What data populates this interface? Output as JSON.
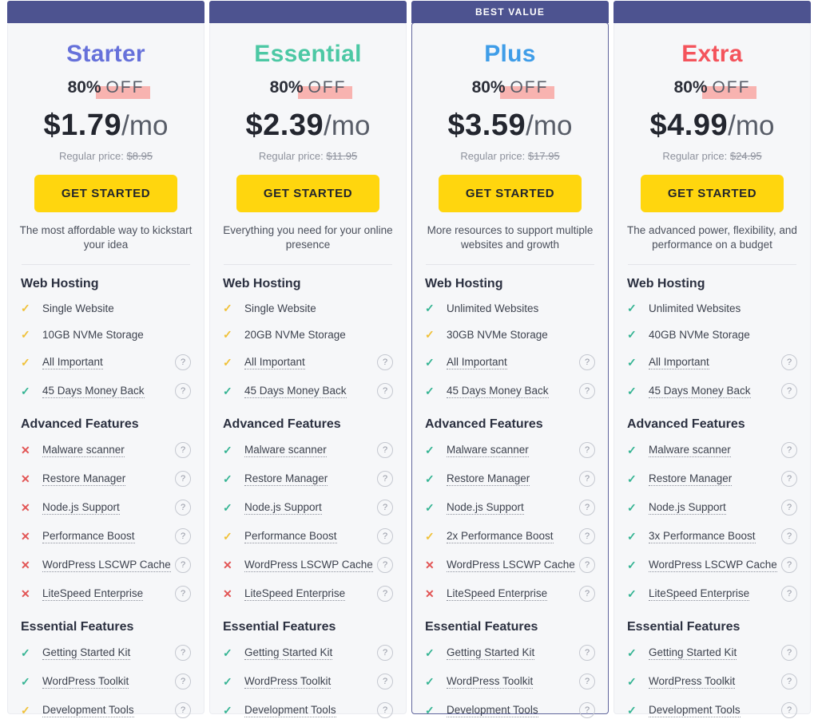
{
  "banner": {
    "label": "BEST VALUE",
    "bg": "#4d5390"
  },
  "icons": {
    "check": "✓",
    "cross": "✕",
    "help": "?"
  },
  "colors": {
    "check_yellow": "#f0c138",
    "check_green": "#35b493",
    "cross_red": "#e25555",
    "cta_yellow": "#ffd60e",
    "discount_highlight": "#f8b3b0"
  },
  "plans": [
    {
      "name": "Starter",
      "color": "#6671da",
      "discount_bold": "80%",
      "discount_rest": "OFF",
      "price": "$1.79",
      "period": "/mo",
      "regular_label": "Regular price:",
      "regular_price": "$8.95",
      "cta": "GET STARTED",
      "description": "The most affordable way to kickstart your idea",
      "best_value": false,
      "sections": [
        {
          "title": "Web Hosting",
          "items": [
            {
              "label": "Single Website",
              "icon": "check-yellow",
              "tooltip": false
            },
            {
              "label": "10GB NVMe Storage",
              "icon": "check-yellow",
              "tooltip": false
            },
            {
              "label": "All Important",
              "icon": "check-yellow",
              "tooltip": true
            },
            {
              "label": "45 Days Money Back",
              "icon": "check-green",
              "tooltip": true
            }
          ]
        },
        {
          "title": "Advanced Features",
          "items": [
            {
              "label": "Malware scanner",
              "icon": "cross",
              "tooltip": true
            },
            {
              "label": "Restore Manager",
              "icon": "cross",
              "tooltip": true
            },
            {
              "label": "Node.js Support",
              "icon": "cross",
              "tooltip": true
            },
            {
              "label": "Performance Boost",
              "icon": "cross",
              "tooltip": true
            },
            {
              "label": "WordPress LSCWP Cache",
              "icon": "cross",
              "tooltip": true
            },
            {
              "label": "LiteSpeed Enterprise",
              "icon": "cross",
              "tooltip": true
            }
          ]
        },
        {
          "title": "Essential Features",
          "items": [
            {
              "label": "Getting Started Kit",
              "icon": "check-green",
              "tooltip": true
            },
            {
              "label": "WordPress Toolkit",
              "icon": "check-green",
              "tooltip": true
            },
            {
              "label": "Development Tools",
              "icon": "check-yellow",
              "tooltip": true
            }
          ]
        }
      ]
    },
    {
      "name": "Essential",
      "color": "#4cc8a4",
      "discount_bold": "80%",
      "discount_rest": "OFF",
      "price": "$2.39",
      "period": "/mo",
      "regular_label": "Regular price:",
      "regular_price": "$11.95",
      "cta": "GET STARTED",
      "description": "Everything you need for your online presence",
      "best_value": false,
      "sections": [
        {
          "title": "Web Hosting",
          "items": [
            {
              "label": "Single Website",
              "icon": "check-yellow",
              "tooltip": false
            },
            {
              "label": "20GB NVMe Storage",
              "icon": "check-yellow",
              "tooltip": false
            },
            {
              "label": "All Important",
              "icon": "check-yellow",
              "tooltip": true
            },
            {
              "label": "45 Days Money Back",
              "icon": "check-green",
              "tooltip": true
            }
          ]
        },
        {
          "title": "Advanced Features",
          "items": [
            {
              "label": "Malware scanner",
              "icon": "check-green",
              "tooltip": true
            },
            {
              "label": "Restore Manager",
              "icon": "check-green",
              "tooltip": true
            },
            {
              "label": "Node.js Support",
              "icon": "check-green",
              "tooltip": true
            },
            {
              "label": "Performance Boost",
              "icon": "check-yellow",
              "tooltip": true
            },
            {
              "label": "WordPress LSCWP Cache",
              "icon": "cross",
              "tooltip": true
            },
            {
              "label": "LiteSpeed Enterprise",
              "icon": "cross",
              "tooltip": true
            }
          ]
        },
        {
          "title": "Essential Features",
          "items": [
            {
              "label": "Getting Started Kit",
              "icon": "check-green",
              "tooltip": true
            },
            {
              "label": "WordPress Toolkit",
              "icon": "check-green",
              "tooltip": true
            },
            {
              "label": "Development Tools",
              "icon": "check-green",
              "tooltip": true
            }
          ]
        }
      ]
    },
    {
      "name": "Plus",
      "color": "#3f9de8",
      "discount_bold": "80%",
      "discount_rest": "OFF",
      "price": "$3.59",
      "period": "/mo",
      "regular_label": "Regular price:",
      "regular_price": "$17.95",
      "cta": "GET STARTED",
      "description": "More resources to support multiple websites and growth",
      "best_value": true,
      "sections": [
        {
          "title": "Web Hosting",
          "items": [
            {
              "label": "Unlimited Websites",
              "icon": "check-green",
              "tooltip": false
            },
            {
              "label": "30GB NVMe Storage",
              "icon": "check-yellow",
              "tooltip": false
            },
            {
              "label": "All Important",
              "icon": "check-green",
              "tooltip": true
            },
            {
              "label": "45 Days Money Back",
              "icon": "check-green",
              "tooltip": true
            }
          ]
        },
        {
          "title": "Advanced Features",
          "items": [
            {
              "label": "Malware scanner",
              "icon": "check-green",
              "tooltip": true
            },
            {
              "label": "Restore Manager",
              "icon": "check-green",
              "tooltip": true
            },
            {
              "label": "Node.js Support",
              "icon": "check-green",
              "tooltip": true
            },
            {
              "label": "2x Performance Boost",
              "icon": "check-yellow",
              "tooltip": true
            },
            {
              "label": "WordPress LSCWP Cache",
              "icon": "cross",
              "tooltip": true
            },
            {
              "label": "LiteSpeed Enterprise",
              "icon": "cross",
              "tooltip": true
            }
          ]
        },
        {
          "title": "Essential Features",
          "items": [
            {
              "label": "Getting Started Kit",
              "icon": "check-green",
              "tooltip": true
            },
            {
              "label": "WordPress Toolkit",
              "icon": "check-green",
              "tooltip": true
            },
            {
              "label": "Development Tools",
              "icon": "check-green",
              "tooltip": true
            }
          ]
        }
      ]
    },
    {
      "name": "Extra",
      "color": "#f4545c",
      "discount_bold": "80%",
      "discount_rest": "OFF",
      "price": "$4.99",
      "period": "/mo",
      "regular_label": "Regular price:",
      "regular_price": "$24.95",
      "cta": "GET STARTED",
      "description": "The advanced power, flexibility, and performance on a budget",
      "best_value": false,
      "sections": [
        {
          "title": "Web Hosting",
          "items": [
            {
              "label": "Unlimited Websites",
              "icon": "check-green",
              "tooltip": false
            },
            {
              "label": "40GB NVMe Storage",
              "icon": "check-green",
              "tooltip": false
            },
            {
              "label": "All Important",
              "icon": "check-green",
              "tooltip": true
            },
            {
              "label": "45 Days Money Back",
              "icon": "check-green",
              "tooltip": true
            }
          ]
        },
        {
          "title": "Advanced Features",
          "items": [
            {
              "label": "Malware scanner",
              "icon": "check-green",
              "tooltip": true
            },
            {
              "label": "Restore Manager",
              "icon": "check-green",
              "tooltip": true
            },
            {
              "label": "Node.js Support",
              "icon": "check-green",
              "tooltip": true
            },
            {
              "label": "3x Performance Boost",
              "icon": "check-green",
              "tooltip": true
            },
            {
              "label": "WordPress LSCWP Cache",
              "icon": "check-green",
              "tooltip": true
            },
            {
              "label": "LiteSpeed Enterprise",
              "icon": "check-green",
              "tooltip": true
            }
          ]
        },
        {
          "title": "Essential Features",
          "items": [
            {
              "label": "Getting Started Kit",
              "icon": "check-green",
              "tooltip": true
            },
            {
              "label": "WordPress Toolkit",
              "icon": "check-green",
              "tooltip": true
            },
            {
              "label": "Development Tools",
              "icon": "check-green",
              "tooltip": true
            }
          ]
        }
      ]
    }
  ]
}
